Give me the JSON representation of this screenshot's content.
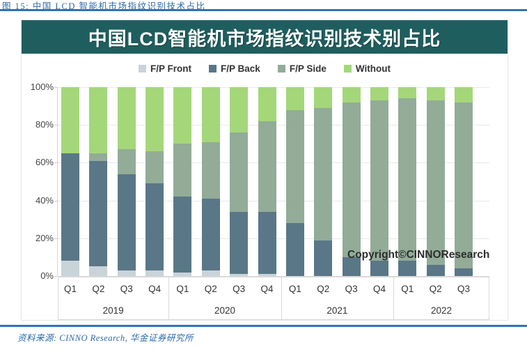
{
  "caption": {
    "prefix": "图 15:",
    "text": "中国 LCD 智能机市场指纹识别技术占比"
  },
  "chart": {
    "title": "中国LCD智能机市场指纹识别技术别占比",
    "watermark": "Copyright©CINNOResearch"
  },
  "source": {
    "text": "资料来源: CINNO Research, 华金证券研究所"
  },
  "colors": {
    "header_teal": "#1f5e5f",
    "rule_blue": "#2e74b5",
    "caption_blue": "#2a6aad"
  },
  "chart_data": {
    "type": "bar",
    "stacked": true,
    "stack_total": 100,
    "title": "中国LCD智能机市场指纹识别技术别占比",
    "categories": [
      "Q1",
      "Q2",
      "Q3",
      "Q4",
      "Q1",
      "Q2",
      "Q3",
      "Q4",
      "Q1",
      "Q2",
      "Q3",
      "Q4",
      "Q1",
      "Q2",
      "Q3"
    ],
    "year_groups": [
      {
        "label": "2019",
        "count": 4
      },
      {
        "label": "2020",
        "count": 4
      },
      {
        "label": "2021",
        "count": 4
      },
      {
        "label": "2022",
        "count": 3
      }
    ],
    "series": [
      {
        "name": "F/P Front",
        "color": "#c8d3da",
        "values": [
          8,
          5,
          3,
          3,
          2,
          3,
          1,
          1,
          0,
          0,
          0,
          0,
          0,
          0,
          0
        ]
      },
      {
        "name": "F/P Back",
        "color": "#5a7787",
        "values": [
          57,
          56,
          51,
          46,
          40,
          38,
          33,
          33,
          28,
          19,
          10,
          8,
          8,
          6,
          4
        ]
      },
      {
        "name": "F/P Side",
        "color": "#92ac97",
        "values": [
          0,
          4,
          13,
          17,
          28,
          30,
          42,
          48,
          60,
          70,
          82,
          85,
          86,
          87,
          88
        ]
      },
      {
        "name": "Without",
        "color": "#a4d779",
        "values": [
          35,
          35,
          33,
          34,
          30,
          29,
          24,
          18,
          12,
          11,
          8,
          7,
          6,
          7,
          8
        ]
      }
    ],
    "y_ticks": [
      "100%",
      "80%",
      "60%",
      "40%",
      "20%",
      "0%"
    ],
    "ylim": [
      0,
      100
    ],
    "xlabel": "",
    "ylabel": "",
    "grid": true,
    "legend_position": "top"
  }
}
